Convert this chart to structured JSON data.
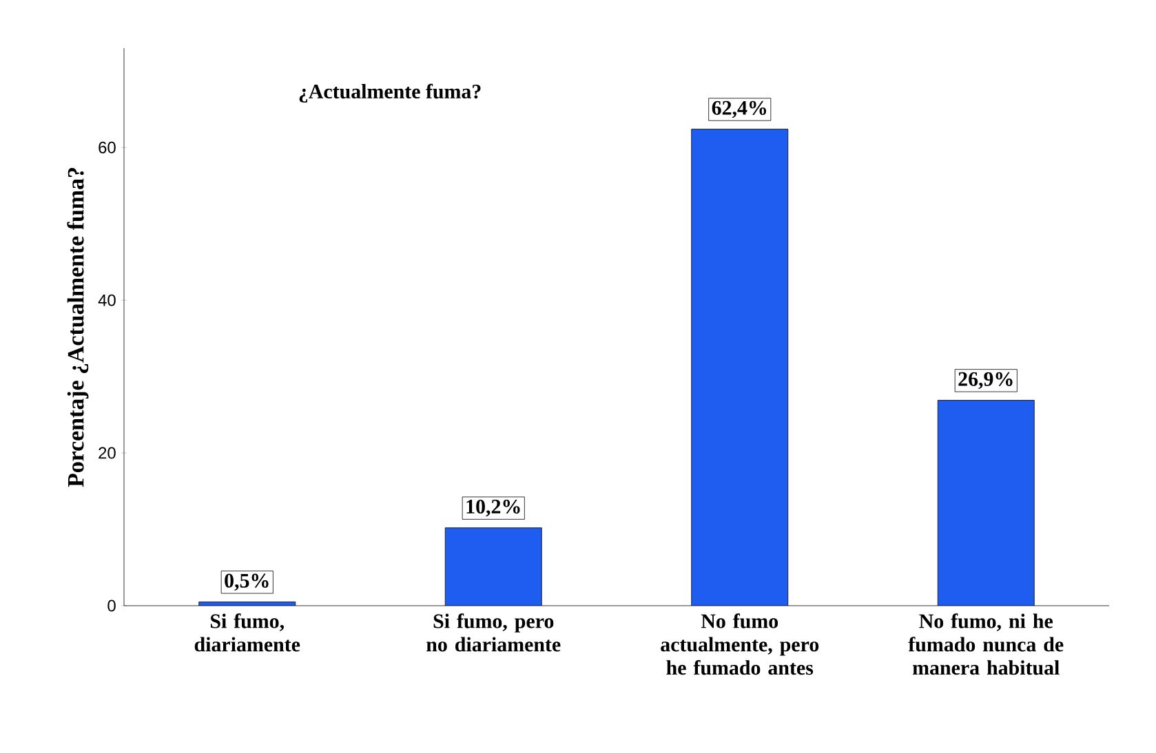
{
  "chart_data": {
    "type": "bar",
    "title": "¿Actualmente fuma?",
    "ylabel": "Porcentaje ¿Actualmente fuma?",
    "categories": [
      "Si fumo, diariamente",
      "Si fumo, pero no diariamente",
      "No fumo actualmente, pero he fumado antes",
      "No fumo, ni he fumado nunca de manera habitual"
    ],
    "values": [
      0.5,
      10.2,
      62.4,
      26.9
    ],
    "value_labels": [
      "0,5%",
      "10,2%",
      "62,4%",
      "26,9%"
    ],
    "color": "#1f5cf0",
    "ylim": [
      0,
      73
    ],
    "yticks": [
      0,
      20,
      40,
      60
    ],
    "grid": false
  }
}
